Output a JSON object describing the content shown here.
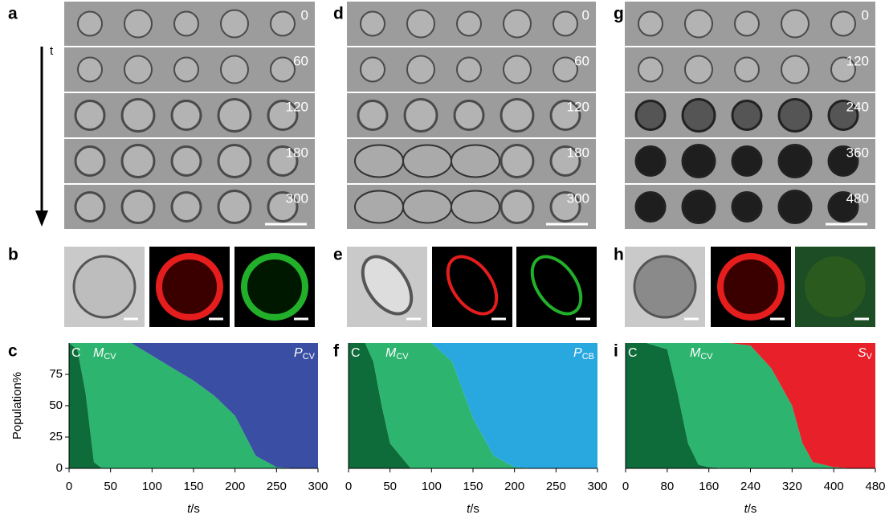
{
  "panel_labels": [
    "a",
    "b",
    "c",
    "d",
    "e",
    "f",
    "g",
    "h",
    "i"
  ],
  "arrow_label": "t",
  "strips": [
    {
      "times": [
        0,
        60,
        120,
        180,
        300
      ]
    },
    {
      "times": [
        0,
        60,
        120,
        180,
        300
      ]
    },
    {
      "times": [
        0,
        120,
        240,
        360,
        480
      ]
    }
  ],
  "chart_data": [
    {
      "type": "area",
      "x": [
        0,
        10,
        20,
        30,
        40,
        50,
        75,
        100,
        125,
        150,
        175,
        200,
        225,
        250,
        275,
        300
      ],
      "xlim": [
        0,
        300
      ],
      "xticks": [
        0,
        50,
        100,
        150,
        200,
        250,
        300
      ],
      "ylim": [
        0,
        100
      ],
      "yticks": [
        0,
        25,
        50,
        75
      ],
      "ylabel": "Population%",
      "xlabel": "t",
      "xlabel_unit": "/s",
      "series": [
        {
          "name": "C",
          "color": "#0e6b3a",
          "values": [
            100,
            95,
            60,
            5,
            0,
            0,
            0,
            0,
            0,
            0,
            0,
            0,
            0,
            0,
            0,
            0
          ]
        },
        {
          "name": "M",
          "name_sub": "CV",
          "color": "#2db46f",
          "values": [
            0,
            5,
            40,
            95,
            100,
            100,
            100,
            90,
            80,
            70,
            58,
            42,
            10,
            1,
            0,
            0
          ]
        },
        {
          "name": "P",
          "name_sub": "CV",
          "color": "#3a4fa3",
          "values": [
            0,
            0,
            0,
            0,
            0,
            0,
            0,
            10,
            20,
            30,
            42,
            58,
            90,
            99,
            100,
            100
          ]
        }
      ]
    },
    {
      "type": "area",
      "x": [
        0,
        10,
        20,
        30,
        40,
        50,
        75,
        100,
        125,
        150,
        175,
        200,
        225,
        250,
        275,
        300
      ],
      "xlim": [
        0,
        300
      ],
      "xticks": [
        0,
        50,
        100,
        150,
        200,
        250,
        300
      ],
      "ylim": [
        0,
        100
      ],
      "xlabel": "t",
      "xlabel_unit": "/s",
      "series": [
        {
          "name": "C",
          "color": "#0e6b3a",
          "values": [
            100,
            100,
            100,
            85,
            50,
            20,
            0,
            0,
            0,
            0,
            0,
            0,
            0,
            0,
            0,
            0
          ]
        },
        {
          "name": "M",
          "name_sub": "CV",
          "color": "#2db46f",
          "values": [
            0,
            0,
            0,
            15,
            50,
            80,
            100,
            100,
            85,
            40,
            10,
            1,
            0,
            0,
            0,
            0
          ]
        },
        {
          "name": "P",
          "name_sub": "CB",
          "color": "#29a8e0",
          "values": [
            0,
            0,
            0,
            0,
            0,
            0,
            0,
            0,
            15,
            60,
            90,
            99,
            100,
            100,
            100,
            100
          ]
        }
      ]
    },
    {
      "type": "area",
      "x": [
        0,
        40,
        80,
        100,
        120,
        140,
        160,
        200,
        240,
        280,
        320,
        340,
        360,
        400,
        440,
        480
      ],
      "xlim": [
        0,
        480
      ],
      "xticks": [
        0,
        80,
        160,
        240,
        320,
        400,
        480
      ],
      "ylim": [
        0,
        100
      ],
      "xlabel": "t",
      "xlabel_unit": "/s",
      "series": [
        {
          "name": "C",
          "color": "#0e6b3a",
          "values": [
            100,
            100,
            95,
            60,
            20,
            3,
            1,
            0,
            0,
            0,
            0,
            0,
            0,
            0,
            0,
            0
          ]
        },
        {
          "name": "M",
          "name_sub": "CV",
          "color": "#2db46f",
          "values": [
            0,
            0,
            5,
            40,
            80,
            97,
            99,
            100,
            98,
            80,
            50,
            20,
            5,
            1,
            0,
            0
          ]
        },
        {
          "name": "S",
          "name_sub": "V",
          "color": "#e8202a",
          "values": [
            0,
            0,
            0,
            0,
            0,
            0,
            0,
            0,
            2,
            20,
            50,
            80,
            95,
            99,
            100,
            100
          ]
        }
      ]
    }
  ]
}
